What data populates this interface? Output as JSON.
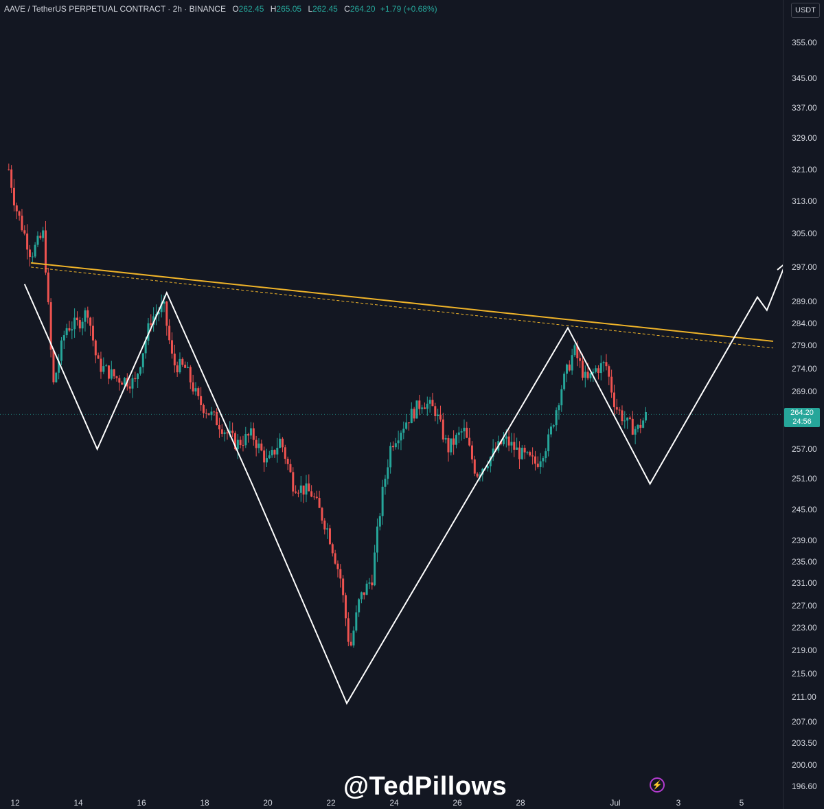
{
  "header": {
    "symbol": "AAVE / TetherUS PERPETUAL CONTRACT · 2h · BINANCE",
    "open_label": "O",
    "open": "262.45",
    "high_label": "H",
    "high": "265.05",
    "low_label": "L",
    "low": "262.45",
    "close_label": "C",
    "close": "264.20",
    "change": "+1.79 (+0.68%)"
  },
  "currency_button": "USDT",
  "last_price": {
    "price": "264.20",
    "countdown": "24:56"
  },
  "watermark": "@TedPillows",
  "icons": {
    "bolt": "bolt-icon"
  },
  "colors": {
    "background": "#131722",
    "up": "#26a69a",
    "down": "#ef5350",
    "trendline": "#f0b429",
    "pattern": "#ffffff"
  },
  "chart_data": {
    "type": "candlestick",
    "title": "AAVE / TetherUS PERPETUAL CONTRACT · 2h · BINANCE",
    "scale": "log",
    "ylim": [
      195,
      360
    ],
    "y_ticks": [
      "355.00",
      "345.00",
      "337.00",
      "329.00",
      "321.00",
      "313.00",
      "305.00",
      "297.00",
      "289.00",
      "284.00",
      "279.00",
      "274.00",
      "269.00",
      "257.00",
      "251.00",
      "245.00",
      "239.00",
      "235.00",
      "231.00",
      "227.00",
      "223.00",
      "219.00",
      "215.00",
      "211.00",
      "207.00",
      "203.50",
      "200.00",
      "196.60"
    ],
    "x_ticks": [
      "12",
      "14",
      "16",
      "18",
      "20",
      "22",
      "24",
      "26",
      "28",
      "Jul",
      "3",
      "5"
    ],
    "price_path": [
      {
        "day": 11.8,
        "price": 321
      },
      {
        "day": 12.0,
        "price": 312
      },
      {
        "day": 12.5,
        "price": 300
      },
      {
        "day": 12.9,
        "price": 305
      },
      {
        "day": 13.2,
        "price": 270
      },
      {
        "day": 13.6,
        "price": 283
      },
      {
        "day": 14.0,
        "price": 284
      },
      {
        "day": 14.3,
        "price": 287
      },
      {
        "day": 14.6,
        "price": 275
      },
      {
        "day": 15.2,
        "price": 272
      },
      {
        "day": 15.8,
        "price": 271
      },
      {
        "day": 16.3,
        "price": 285
      },
      {
        "day": 16.7,
        "price": 288
      },
      {
        "day": 17.0,
        "price": 275
      },
      {
        "day": 17.4,
        "price": 274
      },
      {
        "day": 17.8,
        "price": 267
      },
      {
        "day": 18.5,
        "price": 262
      },
      {
        "day": 19.0,
        "price": 258
      },
      {
        "day": 19.5,
        "price": 260
      },
      {
        "day": 20.0,
        "price": 254
      },
      {
        "day": 20.4,
        "price": 259
      },
      {
        "day": 20.8,
        "price": 250
      },
      {
        "day": 21.4,
        "price": 248
      },
      {
        "day": 21.9,
        "price": 241
      },
      {
        "day": 22.3,
        "price": 232
      },
      {
        "day": 22.6,
        "price": 219
      },
      {
        "day": 22.9,
        "price": 228
      },
      {
        "day": 23.3,
        "price": 232
      },
      {
        "day": 23.6,
        "price": 247
      },
      {
        "day": 23.9,
        "price": 258
      },
      {
        "day": 24.4,
        "price": 263
      },
      {
        "day": 24.9,
        "price": 267
      },
      {
        "day": 25.3,
        "price": 265
      },
      {
        "day": 25.7,
        "price": 257
      },
      {
        "day": 26.2,
        "price": 261
      },
      {
        "day": 26.6,
        "price": 252
      },
      {
        "day": 27.0,
        "price": 255
      },
      {
        "day": 27.5,
        "price": 259
      },
      {
        "day": 28.0,
        "price": 256
      },
      {
        "day": 28.5,
        "price": 254
      },
      {
        "day": 28.9,
        "price": 259
      },
      {
        "day": 29.3,
        "price": 270
      },
      {
        "day": 29.7,
        "price": 278
      },
      {
        "day": 30.1,
        "price": 271
      },
      {
        "day": 30.4,
        "price": 274
      },
      {
        "day": 30.7,
        "price": 275
      },
      {
        "day": 31.0,
        "price": 266
      },
      {
        "day": 31.4,
        "price": 262
      },
      {
        "day": 31.7,
        "price": 261
      },
      {
        "day": 32.0,
        "price": 264.2
      }
    ],
    "annotations": {
      "trendline": [
        {
          "day": 12.5,
          "price": 298
        },
        {
          "day": 36.0,
          "price": 280
        }
      ],
      "trendline_dashed": [
        {
          "day": 12.5,
          "price": 297
        },
        {
          "day": 36.0,
          "price": 278.5
        }
      ],
      "pattern_path": [
        {
          "day": 12.3,
          "price": 293
        },
        {
          "day": 14.6,
          "price": 257
        },
        {
          "day": 16.8,
          "price": 291
        },
        {
          "day": 19.5,
          "price": 250
        },
        {
          "day": 22.5,
          "price": 210
        },
        {
          "day": 29.5,
          "price": 283
        },
        {
          "day": 32.1,
          "price": 250
        },
        {
          "day": 35.5,
          "price": 290
        },
        {
          "day": 35.8,
          "price": 287
        },
        {
          "day": 36.4,
          "price": 298
        }
      ]
    },
    "last_price": 264.2
  }
}
